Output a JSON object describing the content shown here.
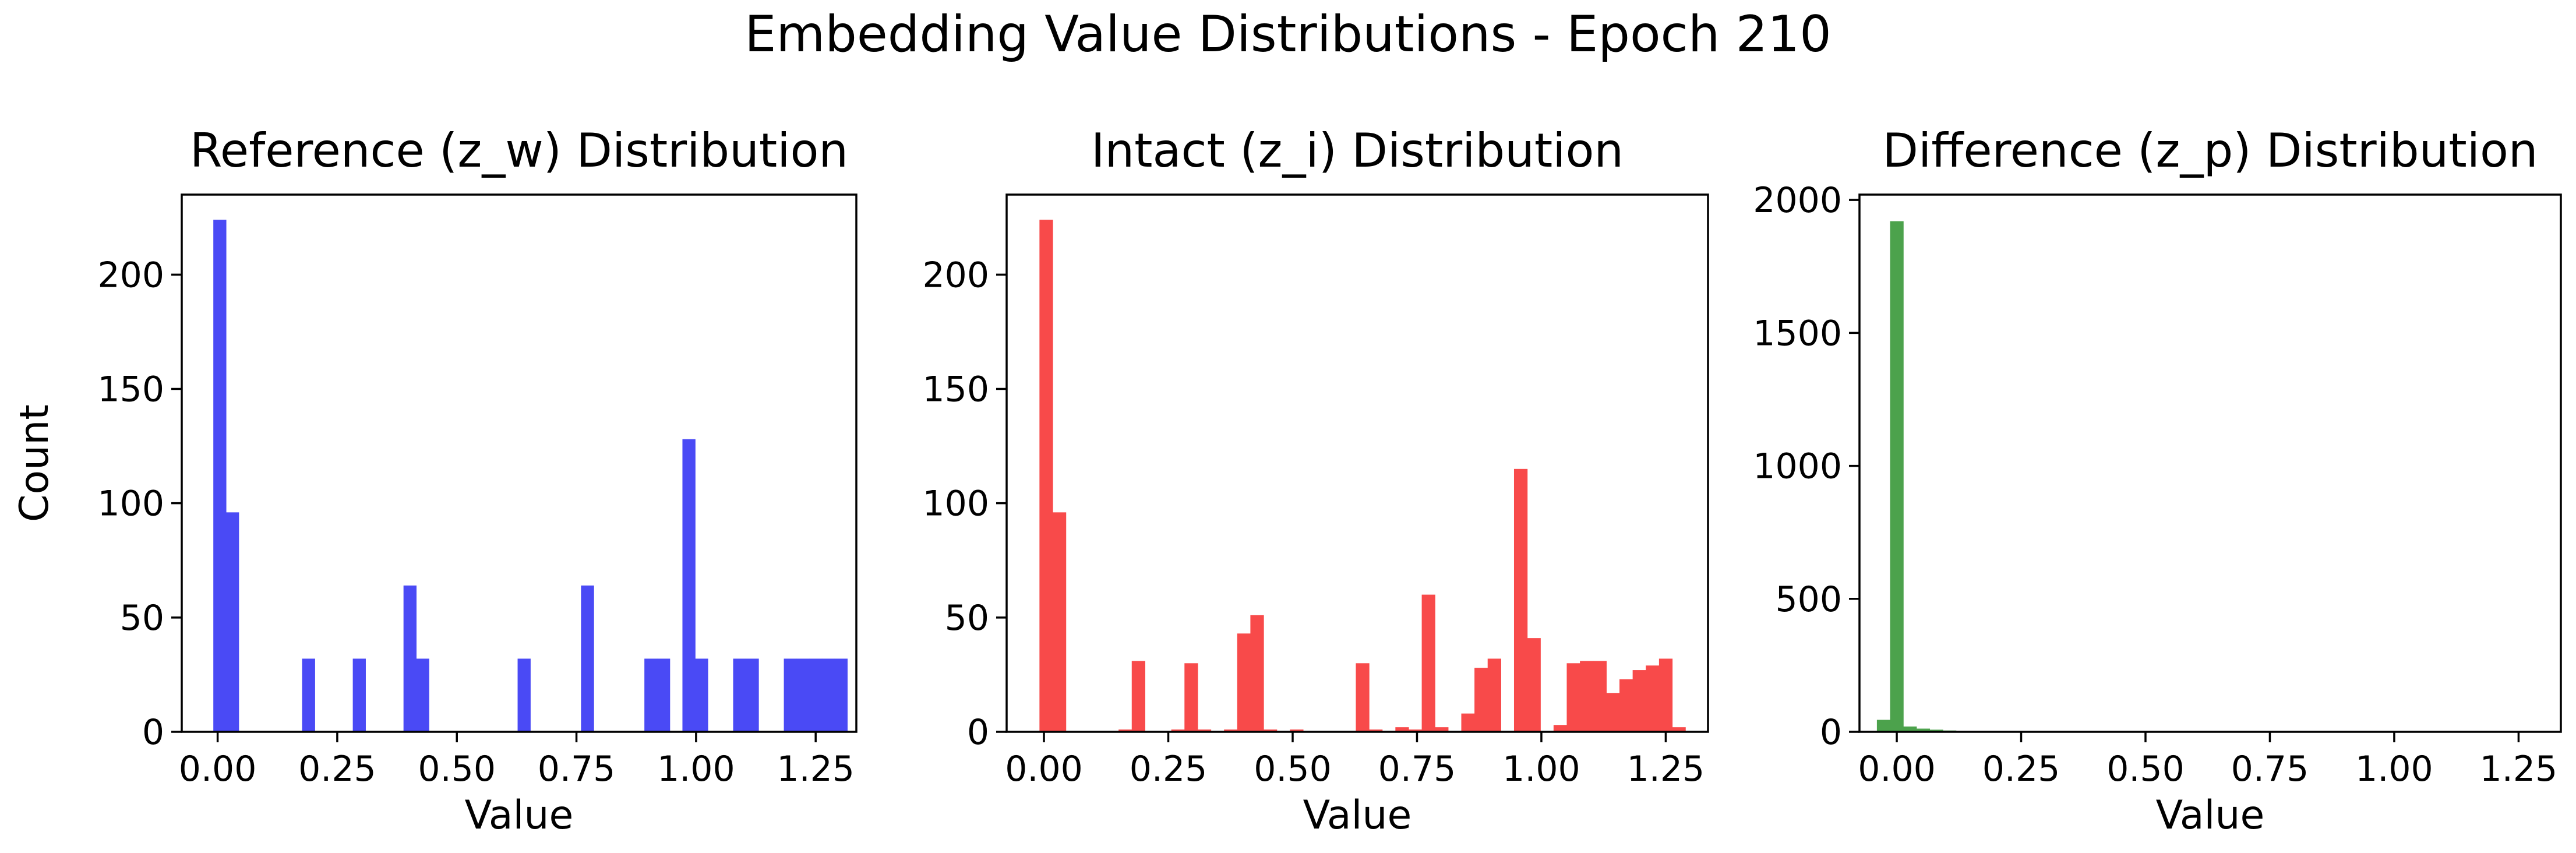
{
  "figure": {
    "suptitle": "Embedding Value Distributions - Epoch 210"
  },
  "chart_data": [
    {
      "type": "histogram",
      "title": "Reference (z_w) Distribution",
      "xlabel": "Value",
      "ylabel": "Count",
      "color": "#4a4af5",
      "xlim": [
        -0.075,
        1.335
      ],
      "ylim": [
        0,
        235
      ],
      "xticks": [
        0.0,
        0.25,
        0.5,
        0.75,
        1.0,
        1.25
      ],
      "xtick_labels": [
        "0.00",
        "0.25",
        "0.50",
        "0.75",
        "1.00",
        "1.25"
      ],
      "yticks": [
        0,
        50,
        100,
        150,
        200
      ],
      "ytick_labels": [
        "0",
        "50",
        "100",
        "150",
        "200"
      ],
      "bin_start": -0.009,
      "bin_width": 0.0265,
      "counts": [
        224,
        96,
        0,
        0,
        0,
        0,
        0,
        32,
        0,
        0,
        0,
        32,
        0,
        0,
        0,
        64,
        32,
        0,
        0,
        0,
        0,
        0,
        0,
        0,
        32,
        0,
        0,
        0,
        0,
        64,
        0,
        0,
        0,
        0,
        32,
        32,
        0,
        128,
        32,
        0,
        0,
        32,
        32,
        0,
        0,
        32,
        32,
        32,
        32,
        32
      ]
    },
    {
      "type": "histogram",
      "title": "Intact (z_i) Distribution",
      "xlabel": "Value",
      "ylabel": "",
      "color": "#f84a4a",
      "xlim": [
        -0.075,
        1.335
      ],
      "ylim": [
        0,
        235
      ],
      "xticks": [
        0.0,
        0.25,
        0.5,
        0.75,
        1.0,
        1.25
      ],
      "xtick_labels": [
        "0.00",
        "0.25",
        "0.50",
        "0.75",
        "1.00",
        "1.25"
      ],
      "yticks": [
        0,
        50,
        100,
        150,
        200
      ],
      "ytick_labels": [
        "0",
        "50",
        "100",
        "150",
        "200"
      ],
      "bin_start": -0.009,
      "bin_width": 0.0265,
      "counts": [
        224,
        96,
        0,
        0,
        0,
        0,
        1,
        31,
        0,
        0,
        1,
        30,
        1,
        0,
        1,
        43,
        51,
        1,
        0,
        1,
        0,
        0,
        0,
        0,
        30,
        1,
        0,
        2,
        1,
        60,
        2,
        0,
        8,
        28,
        32,
        0,
        115,
        41,
        0,
        3,
        30,
        31,
        31,
        17,
        23,
        27,
        29,
        32,
        2,
        0
      ]
    },
    {
      "type": "histogram",
      "title": "Difference (z_p) Distribution",
      "xlabel": "Value",
      "ylabel": "",
      "color": "#4ca24c",
      "xlim": [
        -0.075,
        1.335
      ],
      "ylim": [
        0,
        2020
      ],
      "xticks": [
        0.0,
        0.25,
        0.5,
        0.75,
        1.0,
        1.25
      ],
      "xtick_labels": [
        "0.00",
        "0.25",
        "0.50",
        "0.75",
        "1.00",
        "1.25"
      ],
      "yticks": [
        0,
        500,
        1000,
        1500,
        2000
      ],
      "ytick_labels": [
        "0",
        "500",
        "1000",
        "1500",
        "2000"
      ],
      "bin_start": -0.04,
      "bin_width": 0.0265,
      "counts": [
        45,
        1920,
        20,
        12,
        8,
        5,
        3,
        2,
        1,
        1,
        1,
        0,
        1,
        0,
        0,
        0,
        0,
        0,
        0,
        0,
        0,
        0,
        0,
        0,
        0,
        0,
        0,
        0,
        0,
        0,
        0,
        0,
        0,
        0,
        0,
        0,
        0,
        0,
        0,
        0,
        0,
        0,
        0,
        0,
        0,
        0,
        0,
        0,
        0,
        1
      ]
    }
  ]
}
